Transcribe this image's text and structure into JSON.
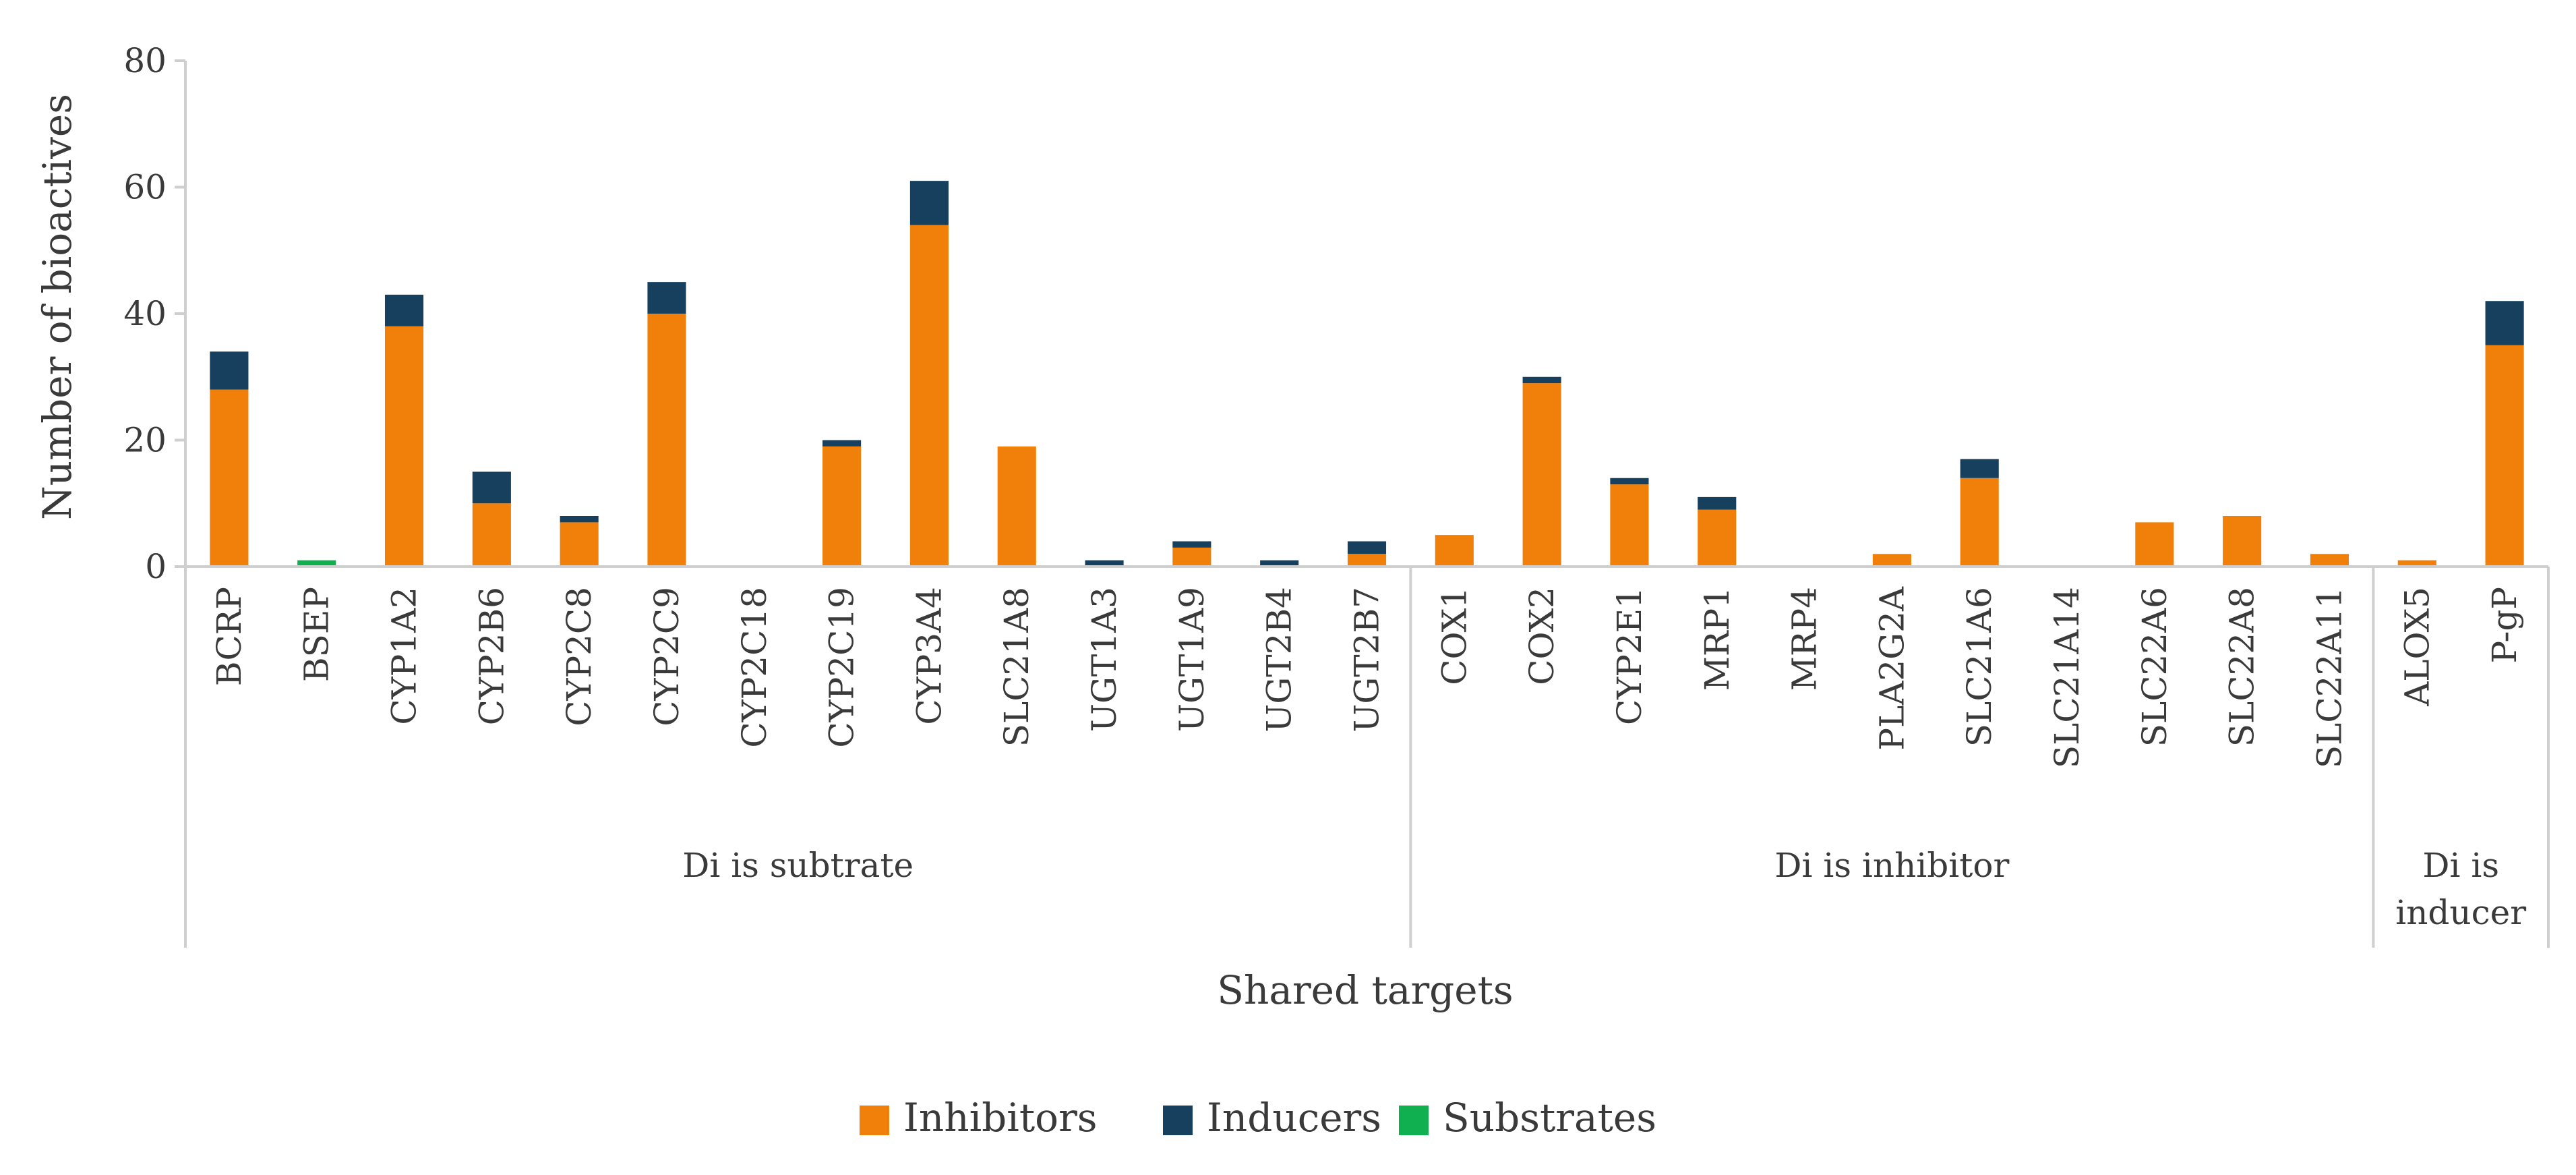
{
  "chart_data": {
    "type": "bar",
    "stacked": true,
    "title": "",
    "xlabel": "Shared targets",
    "ylabel": "Number of bioactives",
    "ylim": [
      0,
      80
    ],
    "yticks": [
      0,
      20,
      40,
      60,
      80
    ],
    "grid": false,
    "legend_position": "bottom",
    "categories": [
      "BCRP",
      "BSEP",
      "CYP1A2",
      "CYP2B6",
      "CYP2C8",
      "CYP2C9",
      "CYP2C18",
      "CYP2C19",
      "CYP3A4",
      "SLC21A8",
      "UGT1A3",
      "UGT1A9",
      "UGT2B4",
      "UGT2B7",
      "COX1",
      "COX2",
      "CYP2E1",
      "MRP1",
      "MRP4",
      "PLA2G2A",
      "SLC21A6",
      "SLC21A14",
      "SLC22A6",
      "SLC22A8",
      "SLC22A11",
      "ALOX5",
      "P-gP"
    ],
    "groups": [
      {
        "label": "Di is subtrate",
        "start": 0,
        "count": 14
      },
      {
        "label": "Di is inhibitor",
        "start": 14,
        "count": 11
      },
      {
        "label_lines": [
          "Di is",
          "inducer"
        ],
        "start": 25,
        "count": 2
      }
    ],
    "series": [
      {
        "name": "Inhibitors",
        "color": "#F0800A",
        "values": [
          28,
          0,
          38,
          10,
          7,
          40,
          0,
          19,
          54,
          19,
          0,
          3,
          0,
          2,
          5,
          29,
          13,
          9,
          0,
          2,
          14,
          0,
          7,
          8,
          2,
          1,
          35
        ]
      },
      {
        "name": "Inducers",
        "color": "#17405E",
        "values": [
          6,
          0,
          5,
          5,
          1,
          5,
          0,
          1,
          7,
          0,
          1,
          1,
          1,
          2,
          0,
          1,
          1,
          2,
          0,
          0,
          3,
          0,
          0,
          0,
          0,
          0,
          7
        ]
      },
      {
        "name": "Substrates",
        "color": "#10B050",
        "values": [
          0,
          1,
          0,
          0,
          0,
          0,
          0,
          0,
          0,
          0,
          0,
          0,
          0,
          0,
          0,
          0,
          0,
          0,
          0,
          0,
          0,
          0,
          0,
          0,
          0,
          0,
          0
        ]
      }
    ]
  }
}
